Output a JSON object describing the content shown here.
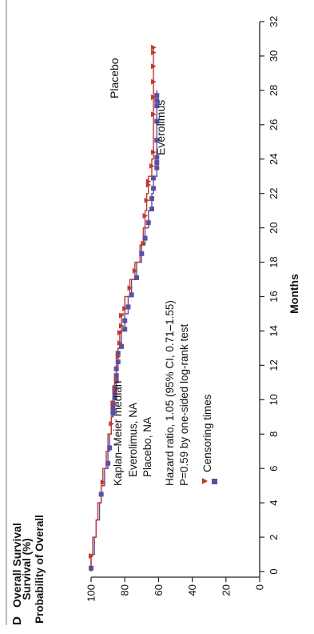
{
  "panel": {
    "letter": "D",
    "title": "Overall Survival"
  },
  "colors": {
    "everolimus": "#5b4ea3",
    "placebo": "#c0392b",
    "axis": "#222222"
  },
  "chart_data": {
    "type": "line",
    "subtype": "kaplan-meier",
    "title": "Overall Survival",
    "xlabel": "Months",
    "ylabel_lines": [
      "Probability of Overall",
      "Survival (%)"
    ],
    "xlim": [
      0,
      32
    ],
    "ylim": [
      0,
      100
    ],
    "xticks": [
      0,
      2,
      4,
      6,
      8,
      10,
      12,
      14,
      16,
      18,
      20,
      22,
      24,
      26,
      28,
      30,
      32
    ],
    "yticks": [
      0,
      20,
      40,
      60,
      80,
      100
    ],
    "grid": false,
    "series": [
      {
        "name": "Everolimus",
        "marker": "square",
        "points": [
          [
            0,
            100
          ],
          [
            1,
            98
          ],
          [
            2,
            97
          ],
          [
            3,
            95
          ],
          [
            4,
            94
          ],
          [
            5,
            92
          ],
          [
            6,
            90
          ],
          [
            7,
            89
          ],
          [
            8,
            88
          ],
          [
            9,
            87
          ],
          [
            10,
            86
          ],
          [
            11,
            85
          ],
          [
            12,
            84
          ],
          [
            13,
            82
          ],
          [
            14,
            80
          ],
          [
            15,
            78
          ],
          [
            16,
            76
          ],
          [
            17,
            73
          ],
          [
            18,
            70
          ],
          [
            19,
            68
          ],
          [
            20,
            66
          ],
          [
            21,
            64
          ],
          [
            22,
            63
          ],
          [
            23,
            61
          ],
          [
            24,
            61
          ],
          [
            28,
            61
          ]
        ],
        "censor_x": [
          0.2,
          4.5,
          6.3,
          7.2,
          9.2,
          9.4,
          9.6,
          9.8,
          10.1,
          10.4,
          10.7,
          11.1,
          11.4,
          11.8,
          12.2,
          12.7,
          13.1,
          14.1,
          14.6,
          15.4,
          16.1,
          17.1,
          18.5,
          19.4,
          20.3,
          21.1,
          21.7,
          22.3,
          22.9,
          23.5,
          23.8,
          24.1,
          25.1,
          26.2,
          27.1,
          27.4,
          27.7
        ]
      },
      {
        "name": "Placebo",
        "marker": "triangle",
        "points": [
          [
            0,
            100
          ],
          [
            1,
            99
          ],
          [
            2,
            97
          ],
          [
            3,
            96
          ],
          [
            4,
            94
          ],
          [
            5,
            93
          ],
          [
            6,
            91
          ],
          [
            7,
            90
          ],
          [
            8,
            88
          ],
          [
            9,
            87
          ],
          [
            10,
            86
          ],
          [
            11,
            85
          ],
          [
            12,
            84
          ],
          [
            13,
            83
          ],
          [
            14,
            82
          ],
          [
            15,
            80
          ],
          [
            16,
            77
          ],
          [
            17,
            74
          ],
          [
            18,
            71
          ],
          [
            19,
            69
          ],
          [
            20,
            68
          ],
          [
            21,
            67
          ],
          [
            22,
            66
          ],
          [
            23,
            64
          ],
          [
            24,
            63
          ],
          [
            30.5,
            63
          ]
        ],
        "censor_x": [
          0.9,
          5.2,
          8.6,
          9.8,
          10.6,
          11.2,
          12.5,
          13.3,
          13.9,
          14.3,
          14.9,
          15.3,
          16.5,
          17.5,
          19.1,
          20.7,
          21.6,
          22.5,
          22.7,
          23.6,
          24.4,
          26.6,
          27.6,
          28.5,
          29.4,
          30.2,
          30.5
        ]
      }
    ],
    "series_labels": [
      "Placebo",
      "Everolimus"
    ],
    "annotations": {
      "median_heading": "Kaplan–Meier median",
      "median_everolimus": "Everolimus, NA",
      "median_placebo": "Placebo, NA",
      "hazard_ratio": "Hazard ratio, 1.05 (95% CI, 0.71–1.55)",
      "p_value": "P=0.59 by one-sided log-rank test",
      "censoring_label": "Censoring times"
    }
  }
}
